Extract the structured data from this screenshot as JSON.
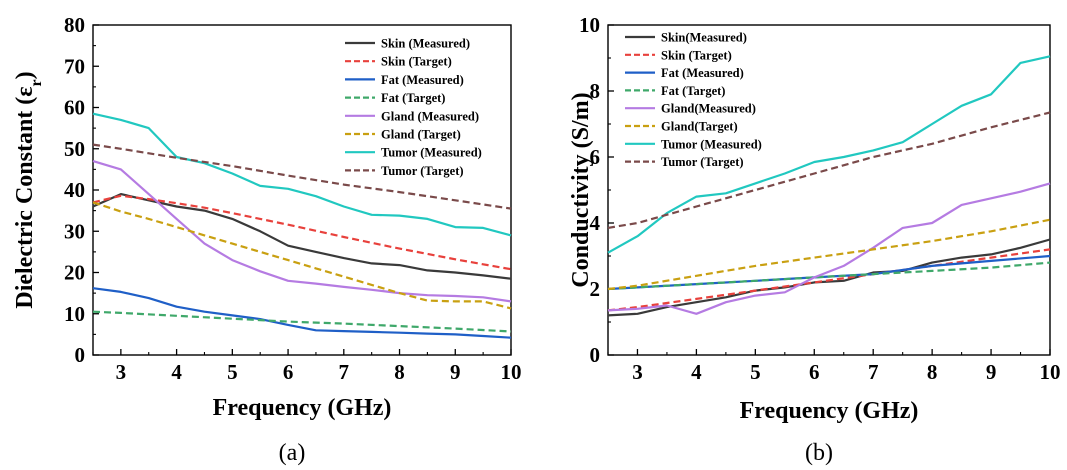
{
  "colors": {
    "skin": "#3a3a3a",
    "skin_target": "#e8413c",
    "fat": "#1f5fc7",
    "fat_target": "#3fa86a",
    "gland": "#b57be2",
    "gland_target": "#c9a011",
    "tumor": "#21c8c0",
    "tumor_target": "#7a4a4a"
  },
  "chart_data": [
    {
      "type": "line",
      "caption": "(a)",
      "xlabel": "Frequency (GHz)",
      "ylabel_main": "Dielectric Constant (ε",
      "ylabel_sub": "r",
      "ylabel_close": ")",
      "xlim": [
        2.5,
        10
      ],
      "ylim": [
        0,
        80
      ],
      "xticks": [
        3,
        4,
        5,
        6,
        7,
        8,
        9,
        10
      ],
      "yticks": [
        0,
        10,
        20,
        30,
        40,
        50,
        60,
        70,
        80
      ],
      "legend_position": "top-right",
      "series": [
        {
          "name": "Skin (Measured)",
          "color_key": "skin",
          "dashed": false,
          "x": [
            2.5,
            3,
            3.5,
            4,
            4.5,
            5,
            5.5,
            6,
            6.5,
            7,
            7.5,
            8,
            8.5,
            9,
            9.5,
            10
          ],
          "y": [
            36,
            39,
            37.5,
            36,
            35,
            33,
            30,
            26.5,
            25,
            23.5,
            22.2,
            21.8,
            20.5,
            20,
            19.3,
            18.5
          ]
        },
        {
          "name": "Skin (Target)",
          "color_key": "skin_target",
          "dashed": true,
          "x": [
            2.5,
            3,
            3.5,
            4,
            4.5,
            5,
            5.5,
            6,
            6.5,
            7,
            7.5,
            8,
            8.5,
            9,
            9.5,
            10
          ],
          "y": [
            37,
            38.6,
            37.8,
            36.8,
            35.7,
            34.4,
            33,
            31.6,
            30.1,
            28.6,
            27.2,
            25.8,
            24.5,
            23.2,
            22,
            20.8
          ]
        },
        {
          "name": "Fat (Measured)",
          "color_key": "fat",
          "dashed": false,
          "x": [
            2.5,
            3,
            3.5,
            4,
            4.5,
            5,
            5.5,
            6,
            6.5,
            7,
            7.5,
            8,
            8.5,
            9,
            9.5,
            10
          ],
          "y": [
            16.2,
            15.3,
            13.8,
            11.7,
            10.5,
            9.6,
            8.7,
            7.3,
            6,
            5.8,
            5.6,
            5.4,
            5.2,
            5,
            4.6,
            4.2
          ]
        },
        {
          "name": "Fat (Target)",
          "color_key": "fat_target",
          "dashed": true,
          "x": [
            2.5,
            3,
            4,
            5,
            6,
            7,
            8,
            9,
            10
          ],
          "y": [
            10.5,
            10.2,
            9.5,
            8.8,
            8.1,
            7.6,
            7,
            6.4,
            5.7
          ]
        },
        {
          "name": "Gland (Measured)",
          "color_key": "gland",
          "dashed": false,
          "x": [
            2.5,
            3,
            3.5,
            4,
            4.5,
            5,
            5.5,
            6,
            6.5,
            7,
            7.5,
            8,
            8.5,
            9,
            9.5,
            10
          ],
          "y": [
            47,
            45,
            39,
            33,
            27,
            23,
            20.3,
            18,
            17.3,
            16.5,
            15.8,
            15,
            14.5,
            14.3,
            14,
            13
          ]
        },
        {
          "name": "Gland (Target)",
          "color_key": "gland_target",
          "dashed": true,
          "x": [
            2.5,
            3,
            3.5,
            4,
            4.5,
            5,
            5.5,
            6,
            6.5,
            7,
            7.5,
            8,
            8.5,
            9,
            9.5,
            10
          ],
          "y": [
            37,
            34.8,
            33,
            31,
            29,
            27,
            25,
            23,
            21,
            19,
            17,
            15,
            13.2,
            13,
            13,
            11.3
          ]
        },
        {
          "name": "Tumor (Measured)",
          "color_key": "tumor",
          "dashed": false,
          "x": [
            2.5,
            3,
            3.5,
            4,
            4.5,
            5,
            5.5,
            6,
            6.5,
            7,
            7.5,
            8,
            8.5,
            9,
            9.5,
            10
          ],
          "y": [
            58.5,
            57,
            55,
            48,
            46.5,
            44,
            41,
            40.3,
            38.5,
            36,
            34,
            33.8,
            33,
            31,
            30.8,
            29
          ]
        },
        {
          "name": "Tumor (Target)",
          "color_key": "tumor_target",
          "dashed": true,
          "x": [
            2.5,
            3,
            4,
            5,
            6,
            7,
            8,
            9,
            10
          ],
          "y": [
            51,
            50,
            47.8,
            45.8,
            43.5,
            41.3,
            39.5,
            37.5,
            35.5
          ]
        }
      ]
    },
    {
      "type": "line",
      "caption": "(b)",
      "xlabel": "Frequency (GHz)",
      "ylabel_main": "Conductivity (S/m)",
      "ylabel_sub": "",
      "ylabel_close": "",
      "xlim": [
        2.5,
        10
      ],
      "ylim": [
        0,
        10
      ],
      "xticks": [
        3,
        4,
        5,
        6,
        7,
        8,
        9,
        10
      ],
      "yticks": [
        0,
        2,
        4,
        6,
        8,
        10
      ],
      "legend_position": "top-left",
      "series": [
        {
          "name": "Skin(Measured)",
          "color_key": "skin",
          "dashed": false,
          "x": [
            2.5,
            3,
            3.5,
            4,
            4.5,
            5,
            5.5,
            6,
            6.5,
            7,
            7.5,
            8,
            8.5,
            9,
            9.5,
            10
          ],
          "y": [
            1.2,
            1.25,
            1.45,
            1.6,
            1.75,
            1.95,
            2.05,
            2.2,
            2.25,
            2.5,
            2.55,
            2.8,
            2.95,
            3.05,
            3.25,
            3.5
          ]
        },
        {
          "name": "Skin (Target)",
          "color_key": "skin_target",
          "dashed": true,
          "x": [
            2.5,
            3,
            4,
            5,
            6,
            7,
            8,
            9,
            10
          ],
          "y": [
            1.35,
            1.45,
            1.7,
            1.95,
            2.2,
            2.45,
            2.7,
            2.95,
            3.2
          ]
        },
        {
          "name": "Fat (Measured)",
          "color_key": "fat",
          "dashed": false,
          "x": [
            2.5,
            3,
            4,
            5,
            6,
            7,
            8,
            9,
            10
          ],
          "y": [
            2.0,
            2.05,
            2.15,
            2.25,
            2.35,
            2.45,
            2.7,
            2.85,
            3.0
          ]
        },
        {
          "name": "Fat (Target)",
          "color_key": "fat_target",
          "dashed": true,
          "x": [
            2.5,
            3,
            4,
            5,
            6,
            7,
            8,
            9,
            10
          ],
          "y": [
            2.0,
            2.05,
            2.15,
            2.25,
            2.35,
            2.45,
            2.55,
            2.65,
            2.8
          ]
        },
        {
          "name": "Gland(Measured)",
          "color_key": "gland",
          "dashed": false,
          "x": [
            2.5,
            3,
            3.5,
            4,
            4.5,
            5,
            5.5,
            6,
            6.5,
            7,
            7.5,
            8,
            8.5,
            9,
            9.5,
            10
          ],
          "y": [
            1.35,
            1.4,
            1.5,
            1.25,
            1.6,
            1.8,
            1.9,
            2.35,
            2.7,
            3.25,
            3.85,
            4.0,
            4.55,
            4.75,
            4.95,
            5.2
          ]
        },
        {
          "name": "Gland(Target)",
          "color_key": "gland_target",
          "dashed": true,
          "x": [
            2.5,
            3,
            4,
            5,
            6,
            7,
            8,
            9,
            10
          ],
          "y": [
            2.0,
            2.1,
            2.4,
            2.7,
            2.95,
            3.2,
            3.45,
            3.75,
            4.1
          ]
        },
        {
          "name": "Tumor (Measured)",
          "color_key": "tumor",
          "dashed": false,
          "x": [
            2.5,
            3,
            3.5,
            4,
            4.5,
            5,
            5.5,
            6,
            6.5,
            7,
            7.5,
            8,
            8.5,
            9,
            9.5,
            10
          ],
          "y": [
            3.1,
            3.6,
            4.3,
            4.8,
            4.9,
            5.2,
            5.5,
            5.85,
            6.0,
            6.2,
            6.45,
            7.0,
            7.55,
            7.9,
            8.85,
            9.05
          ]
        },
        {
          "name": "Tumor (Target)",
          "color_key": "tumor_target",
          "dashed": true,
          "x": [
            2.5,
            3,
            4,
            5,
            6,
            7,
            8,
            9,
            10
          ],
          "y": [
            3.85,
            4.0,
            4.5,
            5.0,
            5.5,
            6.0,
            6.4,
            6.9,
            7.35
          ]
        }
      ]
    }
  ]
}
